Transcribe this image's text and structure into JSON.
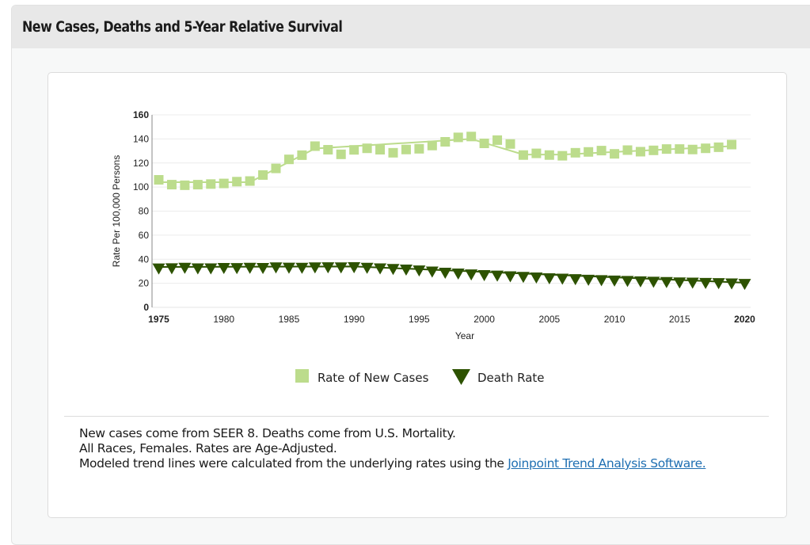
{
  "panel": {
    "title": "New Cases, Deaths and 5-Year Relative Survival"
  },
  "chart_data": {
    "type": "line",
    "title": "",
    "xlabel": "Year",
    "ylabel": "Rate Per 100,000 Persons",
    "xlim": [
      1975,
      2020
    ],
    "ylim": [
      0,
      160
    ],
    "x_ticks": [
      1975,
      1980,
      1985,
      1990,
      1995,
      2000,
      2005,
      2010,
      2015,
      2020
    ],
    "x_ticks_bold": [
      1975,
      2020
    ],
    "y_ticks": [
      0,
      20,
      40,
      60,
      80,
      100,
      120,
      140,
      160
    ],
    "y_ticks_bold": [
      0,
      160
    ],
    "grid": true,
    "legend_position": "bottom-center",
    "series": [
      {
        "name": "Rate of New Cases",
        "marker": "square",
        "color": "#bcdc8c",
        "x": [
          1975,
          1976,
          1977,
          1978,
          1979,
          1980,
          1981,
          1982,
          1983,
          1984,
          1985,
          1986,
          1987,
          1988,
          1989,
          1990,
          1991,
          1992,
          1993,
          1994,
          1995,
          1996,
          1997,
          1998,
          1999,
          2000,
          2001,
          2002,
          2003,
          2004,
          2005,
          2006,
          2007,
          2008,
          2009,
          2010,
          2011,
          2012,
          2013,
          2014,
          2015,
          2016,
          2017,
          2018,
          2019
        ],
        "values": [
          106,
          102,
          101.5,
          102,
          102.5,
          103,
          104.5,
          105,
          110,
          115.5,
          123,
          126.5,
          134,
          131,
          127.2,
          130.9,
          132.2,
          131,
          128.5,
          131.2,
          131.8,
          134.5,
          137.6,
          141.3,
          142,
          136.3,
          139,
          135.8,
          126.6,
          128,
          126.6,
          126,
          128.5,
          129.2,
          130.3,
          127.6,
          130.7,
          129.4,
          130.5,
          131.6,
          131.6,
          131.2,
          132.2,
          133.1,
          135.3
        ],
        "trend": [
          [
            1975,
            104
          ],
          [
            1982,
            104
          ],
          [
            1987,
            132
          ],
          [
            1999,
            140
          ],
          [
            2003,
            127
          ],
          [
            2006,
            127
          ],
          [
            2019,
            134
          ]
        ]
      },
      {
        "name": "Death Rate",
        "marker": "triangle-down",
        "color": "#2d5200",
        "x": [
          1975,
          1976,
          1977,
          1978,
          1979,
          1980,
          1981,
          1982,
          1983,
          1984,
          1985,
          1986,
          1987,
          1988,
          1989,
          1990,
          1991,
          1992,
          1993,
          1994,
          1995,
          1996,
          1997,
          1998,
          1999,
          2000,
          2001,
          2002,
          2003,
          2004,
          2005,
          2006,
          2007,
          2008,
          2009,
          2010,
          2011,
          2012,
          2013,
          2014,
          2015,
          2016,
          2017,
          2018,
          2019,
          2020
        ],
        "values": [
          32.5,
          32.7,
          33.1,
          32.6,
          32.6,
          32.9,
          32.8,
          33.1,
          32.9,
          33.4,
          33.2,
          33.1,
          33.4,
          33.5,
          33.4,
          33.6,
          33.1,
          32.6,
          32.1,
          31.6,
          30.9,
          30.0,
          29.0,
          28.3,
          27.6,
          27.0,
          26.6,
          26.0,
          25.5,
          25.0,
          24.4,
          24.0,
          23.6,
          23.1,
          22.8,
          22.5,
          22.1,
          21.8,
          21.5,
          21.2,
          20.9,
          20.7,
          20.5,
          20.3,
          20.1,
          19.7
        ],
        "trend": [
          [
            1975,
            33.6
          ],
          [
            1990,
            34.0
          ],
          [
            2020,
            20.5
          ]
        ]
      }
    ]
  },
  "notes": {
    "line1": "New cases come from SEER 8. Deaths come from U.S. Mortality.",
    "line2": "All Races, Females. Rates are Age-Adjusted.",
    "line3_prefix": "Modeled trend lines were calculated from the underlying rates using the ",
    "link_text": "Joinpoint Trend Analysis Software."
  }
}
